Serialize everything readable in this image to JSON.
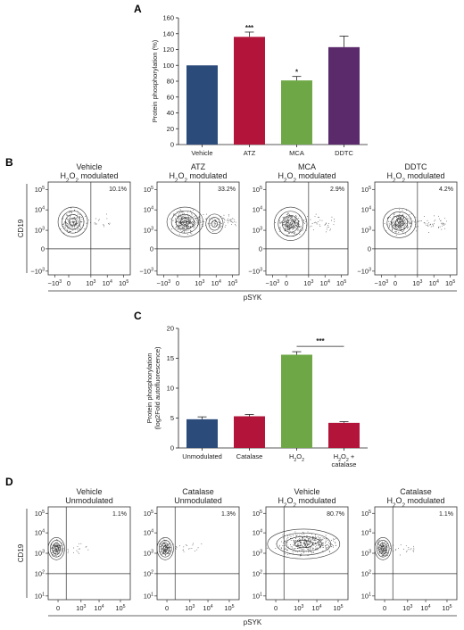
{
  "panel_letters": {
    "a": "A",
    "b": "B",
    "c": "C",
    "d": "D"
  },
  "chart_data": [
    {
      "id": "A",
      "type": "bar",
      "ylabel": "Protein phosphorylation (%)",
      "ylim": [
        0,
        160
      ],
      "yticks": [
        0,
        20,
        40,
        60,
        80,
        100,
        120,
        140,
        160
      ],
      "categories": [
        "Vehicle",
        "ATZ",
        "MCA",
        "DDTC"
      ],
      "values": [
        100,
        136,
        81,
        123
      ],
      "errors": [
        0,
        6,
        5,
        14
      ],
      "colors": [
        "#2b4b7a",
        "#b3153a",
        "#6ea846",
        "#5b2a6b"
      ],
      "significance": [
        "",
        "***",
        "*",
        ""
      ]
    },
    {
      "id": "C",
      "type": "bar",
      "ylabel": "Protein phosphorylation (log2Fold autofluorescence)",
      "ylim": [
        0,
        20
      ],
      "yticks": [
        0,
        5,
        10,
        15,
        20
      ],
      "categories": [
        "Unmodulated",
        "Catalase",
        "H2O2",
        "H2O2 + catalase"
      ],
      "values": [
        4.8,
        5.3,
        15.6,
        4.2
      ],
      "errors": [
        0.4,
        0.3,
        0.5,
        0.2
      ],
      "colors": [
        "#2b4b7a",
        "#b3153a",
        "#6ea846",
        "#b3153a"
      ],
      "significance_bracket": {
        "from": 2,
        "to": 3,
        "label": "***"
      }
    },
    {
      "id": "B",
      "type": "scatter",
      "xlabel": "pSYK",
      "ylabel": "CD19",
      "x_ticks": [
        "-10^3",
        "0",
        "10^3",
        "10^4",
        "10^5"
      ],
      "y_ticks": [
        "-10^3",
        "0",
        "10^3",
        "10^4",
        "10^5"
      ],
      "plots": [
        {
          "title1": "Vehicle",
          "title2": "H2O2 modulated",
          "percent": "10.1%"
        },
        {
          "title1": "ATZ",
          "title2": "H2O2 modulated",
          "percent": "33.2%"
        },
        {
          "title1": "MCA",
          "title2": "H2O2 modulated",
          "percent": "2.9%"
        },
        {
          "title1": "DDTC",
          "title2": "H2O2 modulated",
          "percent": "4.2%"
        }
      ]
    },
    {
      "id": "D",
      "type": "scatter",
      "xlabel": "pSYK",
      "ylabel": "CD19",
      "x_ticks": [
        "0",
        "10^3",
        "10^4",
        "10^5"
      ],
      "y_ticks": [
        "10^1",
        "10^2",
        "10^3",
        "10^4",
        "10^5"
      ],
      "plots": [
        {
          "title1": "Vehicle",
          "title2": "Unmodulated",
          "percent": "1.1%"
        },
        {
          "title1": "Catalase",
          "title2": "Unmodulated",
          "percent": "1.3%"
        },
        {
          "title1": "Vehicle",
          "title2": "H2O2 modulated",
          "percent": "80.7%"
        },
        {
          "title1": "Catalase",
          "title2": "H2O2 modulated",
          "percent": "1.1%"
        }
      ]
    }
  ]
}
